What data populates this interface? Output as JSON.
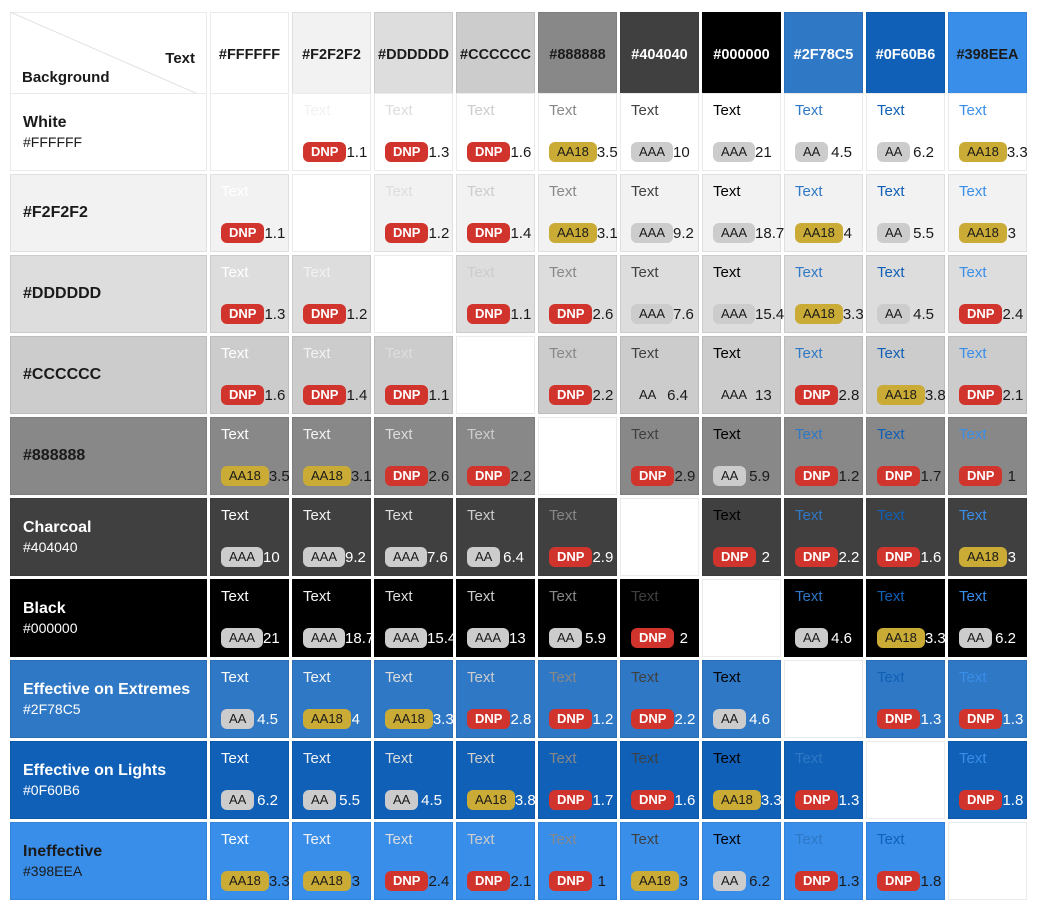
{
  "matrix": {
    "corner": {
      "text_label": "Text",
      "background_label": "Background"
    },
    "cell_sample_text": "Text",
    "badges": {
      "DNP": {
        "bg": "#D0342C",
        "fg": "#FFFFFF",
        "bold": true
      },
      "AA18": {
        "bg": "#C9AB35",
        "fg": "#1a1a1a",
        "bold": false
      },
      "AA": {
        "bg": "#CCCCCC",
        "fg": "#1a1a1a",
        "bold": false
      },
      "AAA": {
        "bg": "#CCCCCC",
        "fg": "#1a1a1a",
        "bold": false
      }
    },
    "columns": [
      {
        "hex": "#FFFFFF",
        "header_text_color": "#1a1a1a"
      },
      {
        "hex": "#F2F2F2",
        "header_text_color": "#1a1a1a"
      },
      {
        "hex": "#DDDDDD",
        "header_text_color": "#1a1a1a"
      },
      {
        "hex": "#CCCCCC",
        "header_text_color": "#1a1a1a"
      },
      {
        "hex": "#888888",
        "header_text_color": "#1a1a1a"
      },
      {
        "hex": "#404040",
        "header_text_color": "#FFFFFF"
      },
      {
        "hex": "#000000",
        "header_text_color": "#FFFFFF"
      },
      {
        "hex": "#2F78C5",
        "header_text_color": "#FFFFFF"
      },
      {
        "hex": "#0F60B6",
        "header_text_color": "#FFFFFF"
      },
      {
        "hex": "#398EEA",
        "header_text_color": "#1a1a1a"
      }
    ],
    "rows": [
      {
        "name": "White",
        "hex": "#FFFFFF",
        "label_color": "#1a1a1a",
        "value_color": "#1a1a1a",
        "cells": [
          null,
          {
            "badge": "DNP",
            "ratio": "1.1"
          },
          {
            "badge": "DNP",
            "ratio": "1.3"
          },
          {
            "badge": "DNP",
            "ratio": "1.6"
          },
          {
            "badge": "AA18",
            "ratio": "3.5"
          },
          {
            "badge": "AAA",
            "ratio": "10"
          },
          {
            "badge": "AAA",
            "ratio": "21"
          },
          {
            "badge": "AA",
            "ratio": "4.5"
          },
          {
            "badge": "AA",
            "ratio": "6.2"
          },
          {
            "badge": "AA18",
            "ratio": "3.3"
          }
        ]
      },
      {
        "name": "",
        "hex": "#F2F2F2",
        "label_color": "#1a1a1a",
        "value_color": "#1a1a1a",
        "cells": [
          {
            "badge": "DNP",
            "ratio": "1.1"
          },
          null,
          {
            "badge": "DNP",
            "ratio": "1.2"
          },
          {
            "badge": "DNP",
            "ratio": "1.4"
          },
          {
            "badge": "AA18",
            "ratio": "3.1"
          },
          {
            "badge": "AAA",
            "ratio": "9.2"
          },
          {
            "badge": "AAA",
            "ratio": "18.7"
          },
          {
            "badge": "AA18",
            "ratio": "4"
          },
          {
            "badge": "AA",
            "ratio": "5.5"
          },
          {
            "badge": "AA18",
            "ratio": "3"
          }
        ]
      },
      {
        "name": "",
        "hex": "#DDDDDD",
        "label_color": "#1a1a1a",
        "value_color": "#1a1a1a",
        "cells": [
          {
            "badge": "DNP",
            "ratio": "1.3"
          },
          {
            "badge": "DNP",
            "ratio": "1.2"
          },
          null,
          {
            "badge": "DNP",
            "ratio": "1.1"
          },
          {
            "badge": "DNP",
            "ratio": "2.6"
          },
          {
            "badge": "AAA",
            "ratio": "7.6"
          },
          {
            "badge": "AAA",
            "ratio": "15.4"
          },
          {
            "badge": "AA18",
            "ratio": "3.3"
          },
          {
            "badge": "AA",
            "ratio": "4.5"
          },
          {
            "badge": "DNP",
            "ratio": "2.4"
          }
        ]
      },
      {
        "name": "",
        "hex": "#CCCCCC",
        "label_color": "#1a1a1a",
        "value_color": "#1a1a1a",
        "cells": [
          {
            "badge": "DNP",
            "ratio": "1.6"
          },
          {
            "badge": "DNP",
            "ratio": "1.4"
          },
          {
            "badge": "DNP",
            "ratio": "1.1"
          },
          null,
          {
            "badge": "DNP",
            "ratio": "2.2"
          },
          {
            "badge": "AA",
            "ratio": "6.4"
          },
          {
            "badge": "AAA",
            "ratio": "13"
          },
          {
            "badge": "DNP",
            "ratio": "2.8"
          },
          {
            "badge": "AA18",
            "ratio": "3.8"
          },
          {
            "badge": "DNP",
            "ratio": "2.1"
          }
        ]
      },
      {
        "name": "",
        "hex": "#888888",
        "label_color": "#1a1a1a",
        "value_color": "#1a1a1a",
        "cells": [
          {
            "badge": "AA18",
            "ratio": "3.5"
          },
          {
            "badge": "AA18",
            "ratio": "3.1"
          },
          {
            "badge": "DNP",
            "ratio": "2.6"
          },
          {
            "badge": "DNP",
            "ratio": "2.2"
          },
          null,
          {
            "badge": "DNP",
            "ratio": "2.9"
          },
          {
            "badge": "AA",
            "ratio": "5.9"
          },
          {
            "badge": "DNP",
            "ratio": "1.2"
          },
          {
            "badge": "DNP",
            "ratio": "1.7"
          },
          {
            "badge": "DNP",
            "ratio": "1"
          }
        ]
      },
      {
        "name": "Charcoal",
        "hex": "#404040",
        "label_color": "#FFFFFF",
        "value_color": "#FFFFFF",
        "cells": [
          {
            "badge": "AAA",
            "ratio": "10"
          },
          {
            "badge": "AAA",
            "ratio": "9.2"
          },
          {
            "badge": "AAA",
            "ratio": "7.6"
          },
          {
            "badge": "AA",
            "ratio": "6.4"
          },
          {
            "badge": "DNP",
            "ratio": "2.9"
          },
          null,
          {
            "badge": "DNP",
            "ratio": "2"
          },
          {
            "badge": "DNP",
            "ratio": "2.2"
          },
          {
            "badge": "DNP",
            "ratio": "1.6"
          },
          {
            "badge": "AA18",
            "ratio": "3"
          }
        ]
      },
      {
        "name": "Black",
        "hex": "#000000",
        "label_color": "#FFFFFF",
        "value_color": "#FFFFFF",
        "cells": [
          {
            "badge": "AAA",
            "ratio": "21"
          },
          {
            "badge": "AAA",
            "ratio": "18.7"
          },
          {
            "badge": "AAA",
            "ratio": "15.4"
          },
          {
            "badge": "AAA",
            "ratio": "13"
          },
          {
            "badge": "AA",
            "ratio": "5.9"
          },
          {
            "badge": "DNP",
            "ratio": "2"
          },
          null,
          {
            "badge": "AA",
            "ratio": "4.6"
          },
          {
            "badge": "AA18",
            "ratio": "3.3"
          },
          {
            "badge": "AA",
            "ratio": "6.2"
          }
        ]
      },
      {
        "name": "Effective on Extremes",
        "hex": "#2F78C5",
        "label_color": "#FFFFFF",
        "value_color": "#FFFFFF",
        "cells": [
          {
            "badge": "AA",
            "ratio": "4.5"
          },
          {
            "badge": "AA18",
            "ratio": "4"
          },
          {
            "badge": "AA18",
            "ratio": "3.3"
          },
          {
            "badge": "DNP",
            "ratio": "2.8"
          },
          {
            "badge": "DNP",
            "ratio": "1.2"
          },
          {
            "badge": "DNP",
            "ratio": "2.2"
          },
          {
            "badge": "AA",
            "ratio": "4.6"
          },
          null,
          {
            "badge": "DNP",
            "ratio": "1.3"
          },
          {
            "badge": "DNP",
            "ratio": "1.3"
          }
        ]
      },
      {
        "name": "Effective on Lights",
        "hex": "#0F60B6",
        "label_color": "#FFFFFF",
        "value_color": "#FFFFFF",
        "cells": [
          {
            "badge": "AA",
            "ratio": "6.2"
          },
          {
            "badge": "AA",
            "ratio": "5.5"
          },
          {
            "badge": "AA",
            "ratio": "4.5"
          },
          {
            "badge": "AA18",
            "ratio": "3.8"
          },
          {
            "badge": "DNP",
            "ratio": "1.7"
          },
          {
            "badge": "DNP",
            "ratio": "1.6"
          },
          {
            "badge": "AA18",
            "ratio": "3.3"
          },
          {
            "badge": "DNP",
            "ratio": "1.3"
          },
          null,
          {
            "badge": "DNP",
            "ratio": "1.8"
          }
        ]
      },
      {
        "name": "Ineffective",
        "hex": "#398EEA",
        "label_color": "#1a1a1a",
        "value_color": "#1a1a1a",
        "cells": [
          {
            "badge": "AA18",
            "ratio": "3.3"
          },
          {
            "badge": "AA18",
            "ratio": "3"
          },
          {
            "badge": "DNP",
            "ratio": "2.4"
          },
          {
            "badge": "DNP",
            "ratio": "2.1"
          },
          {
            "badge": "DNP",
            "ratio": "1"
          },
          {
            "badge": "AA18",
            "ratio": "3"
          },
          {
            "badge": "AA",
            "ratio": "6.2"
          },
          {
            "badge": "DNP",
            "ratio": "1.3"
          },
          {
            "badge": "DNP",
            "ratio": "1.8"
          },
          null
        ]
      }
    ]
  }
}
